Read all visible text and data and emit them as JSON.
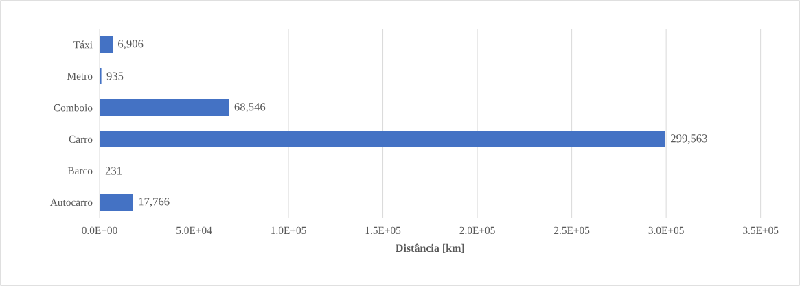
{
  "chart_data": {
    "type": "bar",
    "orientation": "horizontal",
    "categories": [
      "Táxi",
      "Metro",
      "Comboio",
      "Carro",
      "Barco",
      "Autocarro"
    ],
    "values": [
      6906,
      935,
      68546,
      299563,
      231,
      17766
    ],
    "value_labels": [
      "6,906",
      "935",
      "68,546",
      "299,563",
      "231",
      "17,766"
    ],
    "color": "#4472c4",
    "xlim": [
      0,
      350000
    ],
    "xticks": [
      {
        "value": 0,
        "label": "0.0E+00"
      },
      {
        "value": 50000,
        "label": "5.0E+04"
      },
      {
        "value": 100000,
        "label": "1.0E+05"
      },
      {
        "value": 150000,
        "label": "1.5E+05"
      },
      {
        "value": 200000,
        "label": "2.0E+05"
      },
      {
        "value": 250000,
        "label": "2.5E+05"
      },
      {
        "value": 300000,
        "label": "3.0E+05"
      },
      {
        "value": 350000,
        "label": "3.5E+05"
      }
    ],
    "xlabel": "Distância [km]",
    "grid": "x"
  }
}
